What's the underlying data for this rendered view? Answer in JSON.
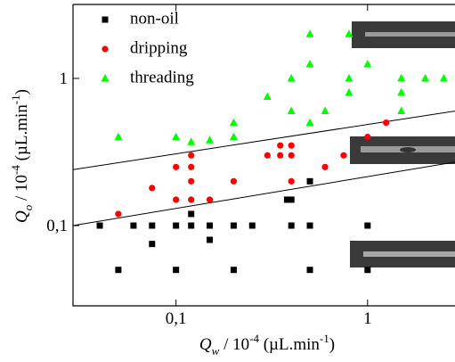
{
  "chart_data": {
    "type": "scatter",
    "xlabel": [
      "Q",
      "w",
      " / 10",
      "-4",
      " (µL.min",
      "-1",
      ")"
    ],
    "ylabel": [
      "Q",
      "o",
      " / 10",
      "-4",
      " (µL.min",
      "-1",
      ")"
    ],
    "log_x": true,
    "log_y": true,
    "xlim": [
      0.029,
      2.86
    ],
    "ylim": [
      0.0285,
      3.18
    ],
    "xticks": [
      {
        "value": 0.1,
        "label": "0,1"
      },
      1
    ],
    "yticks": [
      {
        "value": 0.1,
        "label": "0,1"
      },
      1
    ],
    "series": [
      {
        "name": "non-oil",
        "color": "#000000",
        "marker": "square",
        "x": [
          0.04,
          0.05,
          0.06,
          0.075,
          0.075,
          0.1,
          0.1,
          0.12,
          0.12,
          0.15,
          0.15,
          0.2,
          0.2,
          0.25,
          0.38,
          0.4,
          0.4,
          0.5,
          0.5,
          0.5,
          1,
          1
        ],
        "values": [
          0.1,
          0.05,
          0.1,
          0.1,
          0.075,
          0.1,
          0.05,
          0.12,
          0.1,
          0.1,
          0.08,
          0.1,
          0.05,
          0.1,
          0.15,
          0.15,
          0.1,
          0.2,
          0.1,
          0.05,
          0.1,
          0.05
        ]
      },
      {
        "name": "dripping",
        "color": "#ff0000",
        "marker": "circle",
        "x": [
          0.05,
          0.075,
          0.1,
          0.1,
          0.12,
          0.12,
          0.12,
          0.12,
          0.15,
          0.2,
          0.3,
          0.35,
          0.35,
          0.4,
          0.4,
          0.4,
          0.6,
          0.75,
          1,
          1.25
        ],
        "values": [
          0.12,
          0.18,
          0.25,
          0.15,
          0.3,
          0.25,
          0.2,
          0.15,
          0.15,
          0.2,
          0.3,
          0.35,
          0.3,
          0.35,
          0.3,
          0.2,
          0.25,
          0.3,
          0.4,
          0.5
        ]
      },
      {
        "name": "threading",
        "color": "#00ff00",
        "marker": "triangle",
        "x": [
          0.05,
          0.1,
          0.12,
          0.15,
          0.2,
          0.2,
          0.3,
          0.4,
          0.4,
          0.5,
          0.5,
          0.5,
          0.6,
          0.8,
          0.8,
          0.8,
          1,
          1.5,
          1.5,
          1.5,
          2,
          2.5
        ],
        "values": [
          0.4,
          0.4,
          0.37,
          0.38,
          0.5,
          0.4,
          0.75,
          1,
          0.6,
          2,
          1.25,
          0.5,
          0.6,
          2,
          1,
          0.8,
          1.25,
          1,
          0.8,
          0.6,
          1,
          1
        ]
      }
    ],
    "lines": [
      {
        "x": [
          0.029,
          2.86
        ],
        "values": [
          0.24,
          0.6
        ]
      },
      {
        "x": [
          0.029,
          2.86
        ],
        "values": [
          0.1,
          0.27
        ]
      }
    ],
    "legend": "upper left"
  }
}
